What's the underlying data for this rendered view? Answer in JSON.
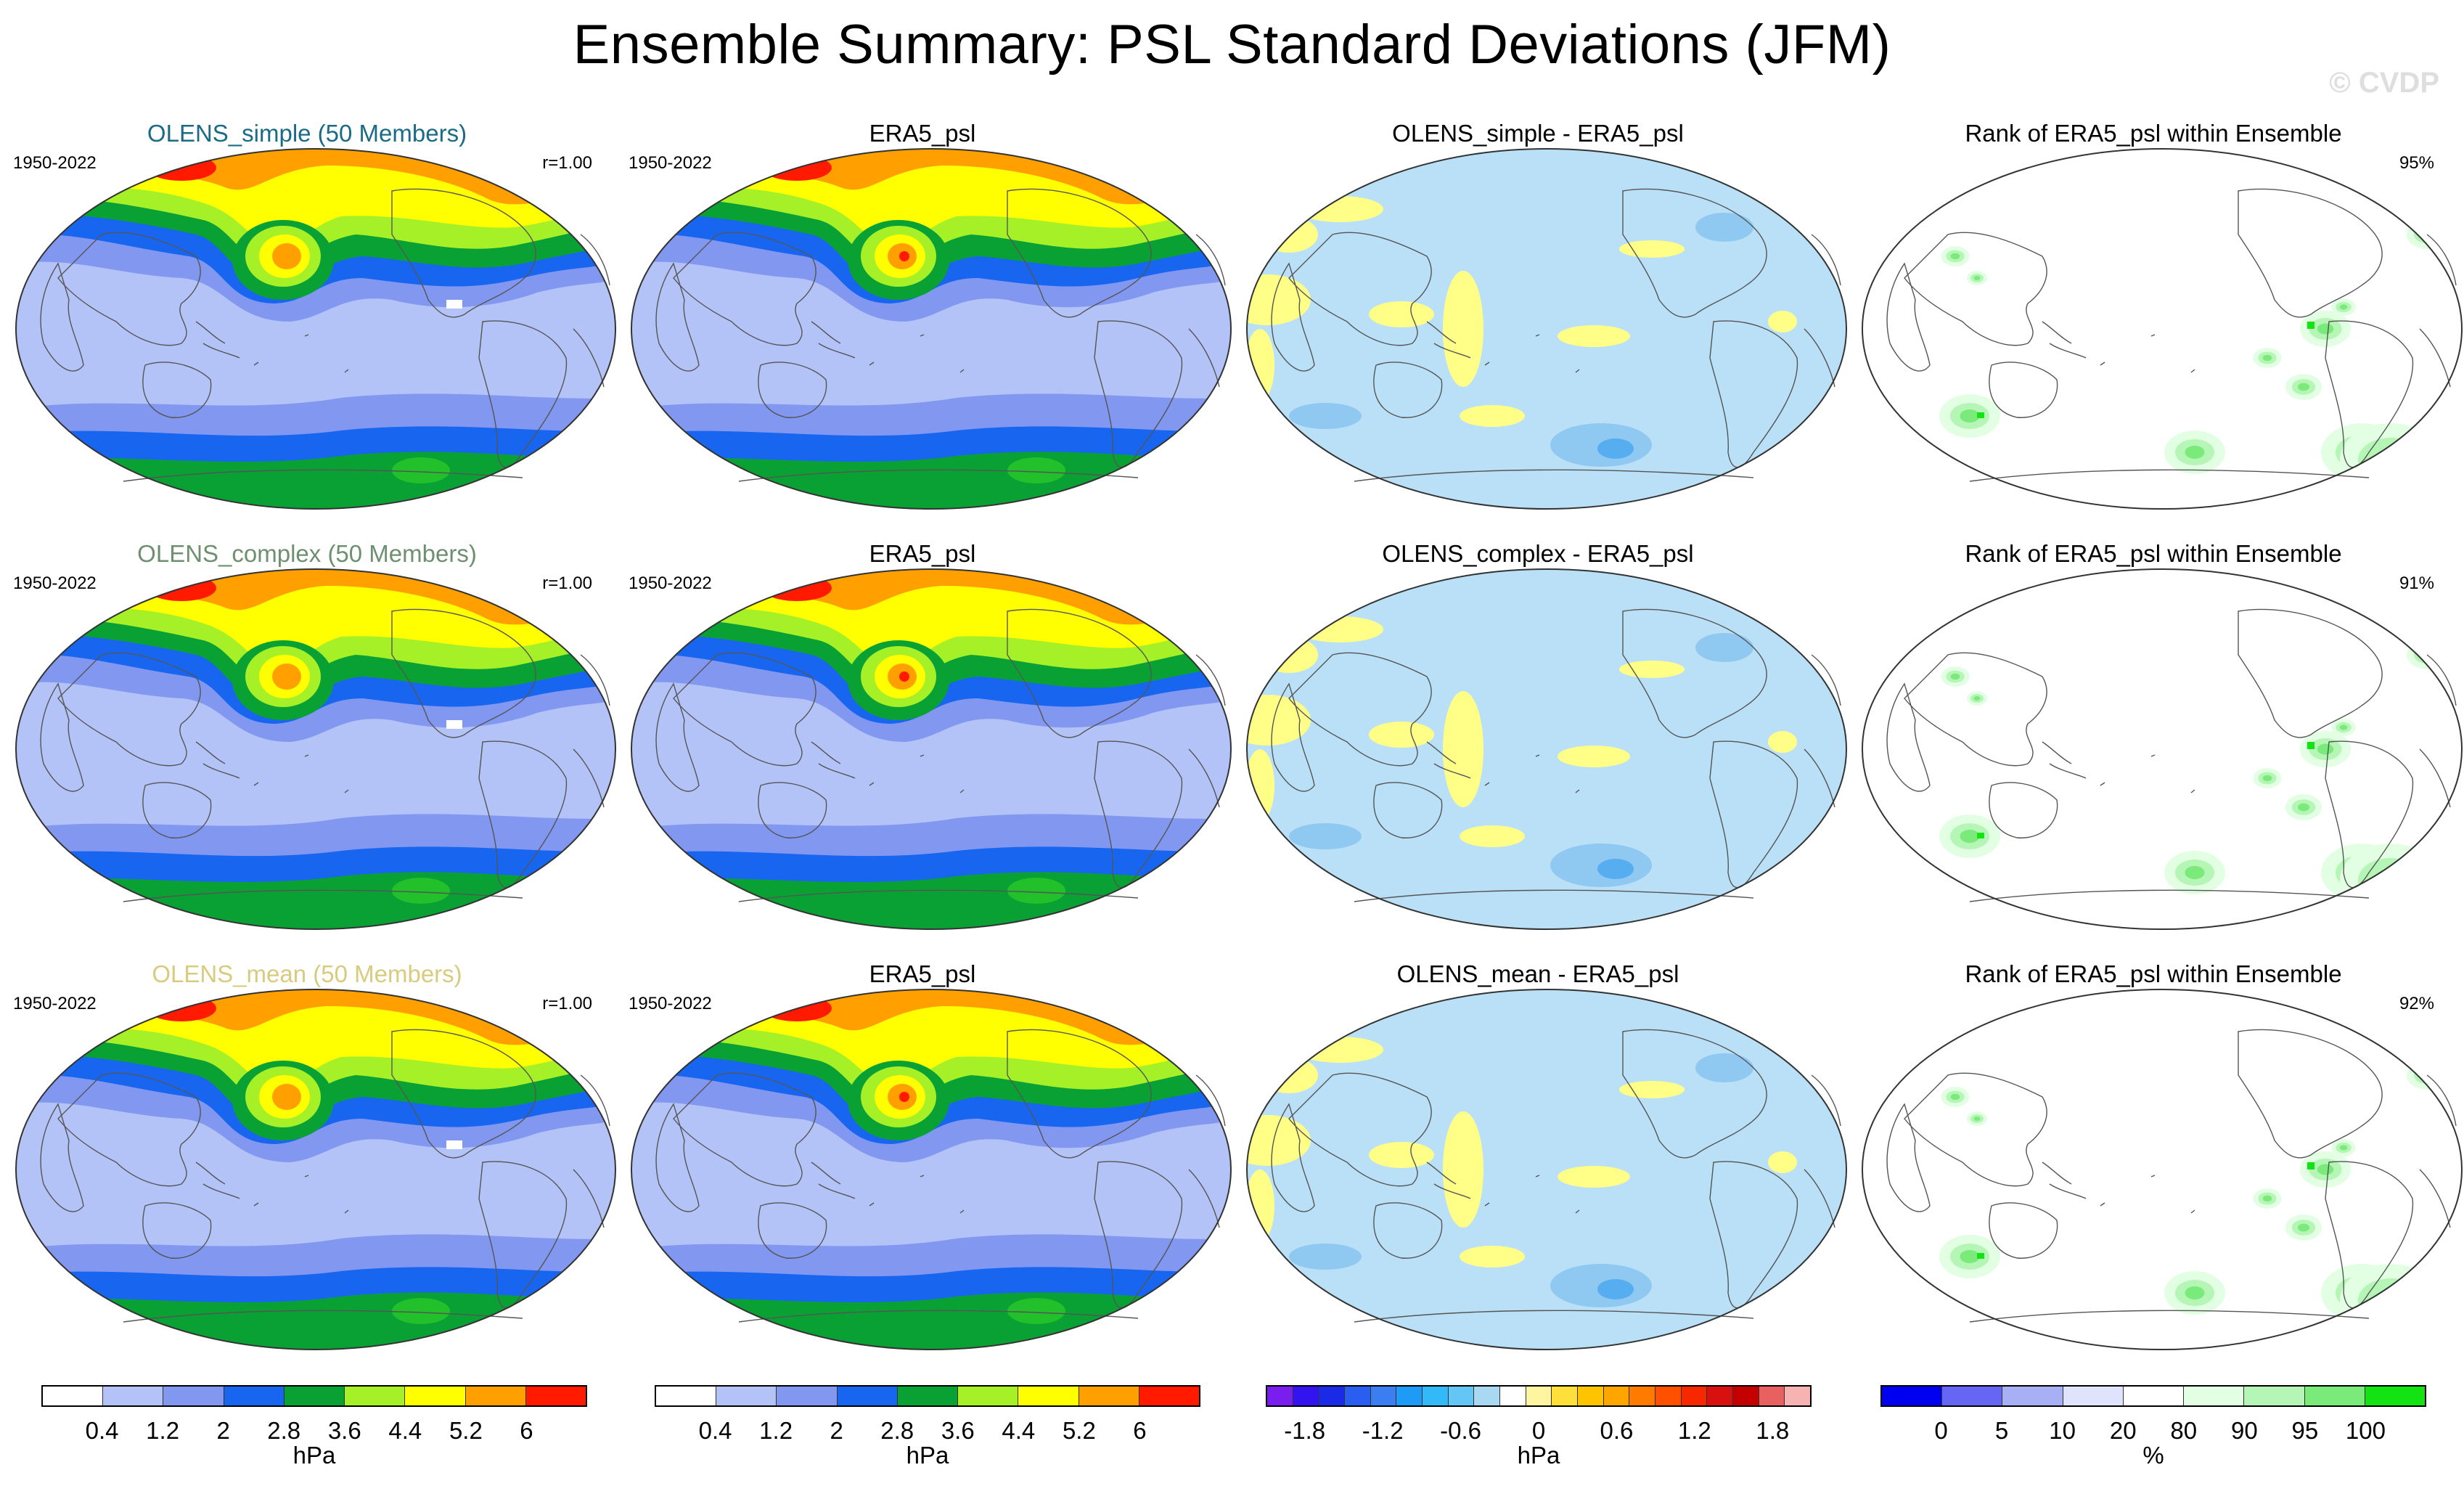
{
  "title": "Ensemble Summary: PSL Standard Deviations (JFM)",
  "watermark": "© CVDP",
  "colors": {
    "std": [
      "#ffffff",
      "#b4c3f7",
      "#8297f0",
      "#1866f0",
      "#0aa134",
      "#22c02a",
      "#a6f027",
      "#ffff00",
      "#ffa000",
      "#ff1a00"
    ],
    "diff": [
      "#ffff88",
      "#b9e0f6",
      "#8fc8f0",
      "#56aef1"
    ],
    "rank": [
      "#ffffff",
      "#e3ffe3",
      "#b5f5b5",
      "#7aeb7a",
      "#13e313"
    ]
  },
  "rows": [
    {
      "label": "OLENS_simple (50 Members)",
      "label_color": "#1a6b86",
      "period": "1950-2022",
      "corr": "r=1.00",
      "obs_title": "ERA5_psl",
      "obs_period": "1950-2022",
      "diff_title": "OLENS_simple - ERA5_psl",
      "rank_title": "Rank of ERA5_psl within Ensemble",
      "rank_pct": "95%"
    },
    {
      "label": "OLENS_complex (50 Members)",
      "label_color": "#6e9070",
      "period": "1950-2022",
      "corr": "r=1.00",
      "obs_title": "ERA5_psl",
      "obs_period": "1950-2022",
      "diff_title": "OLENS_complex - ERA5_psl",
      "rank_title": "Rank of ERA5_psl within Ensemble",
      "rank_pct": "91%"
    },
    {
      "label": "OLENS_mean (50 Members)",
      "label_color": "#d9cb7e",
      "period": "1950-2022",
      "corr": "r=1.00",
      "obs_title": "ERA5_psl",
      "obs_period": "1950-2022",
      "diff_title": "OLENS_mean - ERA5_psl",
      "rank_title": "Rank of ERA5_psl within Ensemble",
      "rank_pct": "92%"
    }
  ],
  "colorbars": [
    {
      "unit": "hPa",
      "colors": [
        "#ffffff",
        "#b4c3f7",
        "#8297f0",
        "#1866f0",
        "#0aa134",
        "#a6f027",
        "#ffff00",
        "#ffa000",
        "#ff1a00"
      ],
      "ticks": [
        "0.4",
        "1.2",
        "2",
        "2.8",
        "3.6",
        "4.4",
        "5.2",
        "6"
      ]
    },
    {
      "unit": "hPa",
      "colors": [
        "#ffffff",
        "#b4c3f7",
        "#8297f0",
        "#1866f0",
        "#0aa134",
        "#a6f027",
        "#ffff00",
        "#ffa000",
        "#ff1a00"
      ],
      "ticks": [
        "0.4",
        "1.2",
        "2",
        "2.8",
        "3.6",
        "4.4",
        "5.2",
        "6"
      ]
    },
    {
      "unit": "hPa",
      "colors": [
        "#7a1ef0",
        "#3314f0",
        "#1a2ae6",
        "#2a5ef0",
        "#3a7ef2",
        "#1e9af7",
        "#33b9f8",
        "#63c6f5",
        "#a9d8f2",
        "#ffffff",
        "#fff5a0",
        "#ffdf3a",
        "#ffc400",
        "#ffa500",
        "#ff7b00",
        "#ff5000",
        "#f72800",
        "#d91010",
        "#c50000",
        "#e86060",
        "#f7b2b2"
      ],
      "ticks": [
        "-1.8",
        "-1.2",
        "-0.6",
        "0",
        "0.6",
        "1.2",
        "1.8"
      ],
      "tick_slots": [
        1.5,
        4.5,
        7.5,
        10.5,
        13.5,
        16.5,
        19.5
      ]
    },
    {
      "unit": "%",
      "colors": [
        "#0000f0",
        "#6666f5",
        "#a8b0f5",
        "#dfe3fb",
        "#ffffff",
        "#e3ffe3",
        "#b5f5b5",
        "#7aeb7a",
        "#13e313"
      ],
      "ticks": [
        "0",
        "5",
        "10",
        "20",
        "80",
        "90",
        "95",
        "100"
      ],
      "tick_slots": [
        1,
        2,
        3,
        4,
        5,
        6,
        7,
        8
      ]
    }
  ]
}
